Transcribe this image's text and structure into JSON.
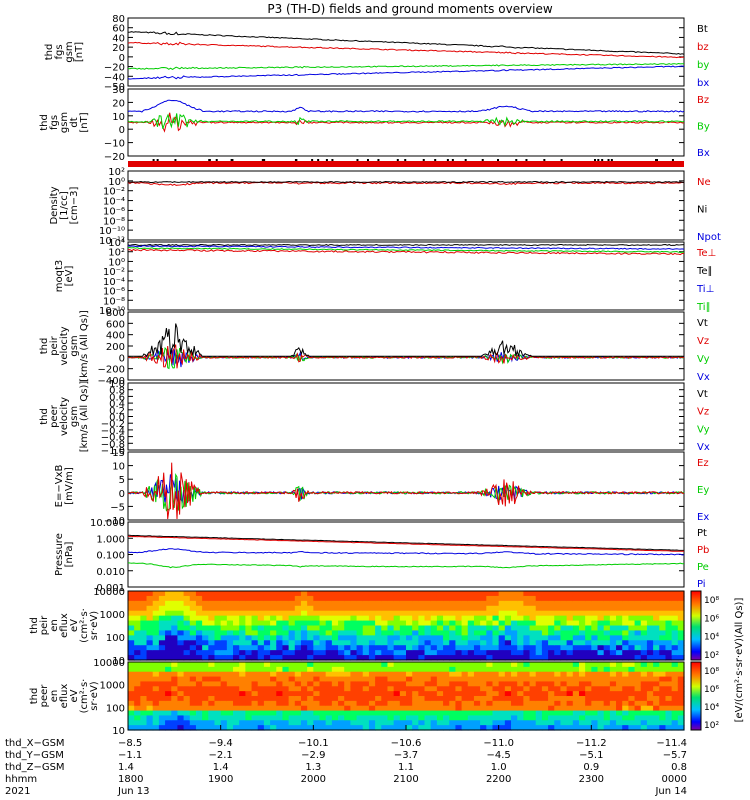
{
  "title": "P3 (TH-D) fields and ground moments overview",
  "colors": {
    "black": "#000000",
    "red": "#e00000",
    "green": "#00cc00",
    "blue": "#0000e0"
  },
  "chart_data": [
    {
      "type": "line",
      "panel": "fgs_gsm",
      "ylabel": [
        "thd",
        "fgs",
        "gsm",
        "[nT]"
      ],
      "ylim": [
        -50,
        88
      ],
      "yticks": [
        "80",
        "60",
        "40",
        "20",
        "0",
        "−20",
        "−40",
        "−50"
      ],
      "series": [
        {
          "name": "Bt",
          "color": "black",
          "start": 60,
          "end": 15
        },
        {
          "name": "bz",
          "color": "red",
          "start": 38,
          "end": 8
        },
        {
          "name": "by",
          "color": "green",
          "start": -15,
          "end": -5
        },
        {
          "name": "bx",
          "color": "blue",
          "start": -35,
          "end": -10
        }
      ]
    },
    {
      "type": "line",
      "panel": "fgs_gsm_detrended",
      "ylabel": [
        "thd",
        "fgs",
        "gsm",
        "dt",
        "[nT]"
      ],
      "ylim": [
        -28,
        32
      ],
      "yticks": [
        "30",
        "20",
        "10",
        "0",
        "−10",
        "−20"
      ],
      "series": [
        {
          "name": "Bz",
          "color": "red",
          "level": 2
        },
        {
          "name": "By",
          "color": "green",
          "level": 3
        },
        {
          "name": "Bx",
          "color": "blue",
          "level": 12
        }
      ]
    },
    {
      "type": "line",
      "panel": "density",
      "ylabel": [
        "Density",
        "[1/cc]",
        "[cm−3]"
      ],
      "yscale": "log",
      "yticks": [
        "10²",
        "10⁰",
        "10⁻²",
        "10⁻⁴",
        "10⁻⁶",
        "10⁻⁸",
        "10⁻¹⁰",
        "10⁻¹²"
      ],
      "series": [
        {
          "name": "Ne",
          "color": "red"
        },
        {
          "name": "Ni",
          "color": "black"
        },
        {
          "name": "Npot",
          "color": "blue"
        }
      ]
    },
    {
      "type": "line",
      "panel": "temperature",
      "ylabel": [
        "moqt3",
        "[eV]"
      ],
      "yscale": "log",
      "yticks": [
        "10⁴",
        "10²",
        "10⁰",
        "10⁻²",
        "10⁻⁴",
        "10⁻⁶",
        "10⁻⁸",
        "10⁻¹⁰"
      ],
      "series": [
        {
          "name": "Te⊥",
          "color": "red"
        },
        {
          "name": "Te∥",
          "color": "black"
        },
        {
          "name": "Ti⊥",
          "color": "blue"
        },
        {
          "name": "Ti∥",
          "color": "green"
        }
      ]
    },
    {
      "type": "line",
      "panel": "peir_velocity",
      "ylabel": [
        "thd",
        "peir",
        "velocity",
        "gsm",
        "[km/s (All Qs)]"
      ],
      "ylim": [
        -400,
        800
      ],
      "yticks": [
        "800",
        "600",
        "400",
        "200",
        "0",
        "−200",
        "−400"
      ],
      "series": [
        {
          "name": "Vt",
          "color": "black"
        },
        {
          "name": "Vz",
          "color": "red"
        },
        {
          "name": "Vy",
          "color": "green"
        },
        {
          "name": "Vx",
          "color": "blue"
        }
      ]
    },
    {
      "type": "line",
      "panel": "peer_velocity",
      "ylabel": [
        "thd",
        "peer",
        "velocity",
        "gsm",
        "[km/s (All Qs)]"
      ],
      "ylim": [
        -1,
        1
      ],
      "yticks": [
        "1.0",
        "0.8",
        "0.6",
        "0.4",
        "0.2",
        "0.0",
        "−0.2",
        "−0.4",
        "−0.6",
        "−0.8",
        "−1.0"
      ],
      "series": [
        {
          "name": "Vt",
          "color": "black"
        },
        {
          "name": "Vz",
          "color": "red"
        },
        {
          "name": "Vy",
          "color": "green"
        },
        {
          "name": "Vx",
          "color": "blue"
        }
      ]
    },
    {
      "type": "line",
      "panel": "efield",
      "ylabel": [
        "E=−VxB",
        "[mV/m]"
      ],
      "ylim": [
        -10,
        15
      ],
      "yticks": [
        "15",
        "10",
        "5",
        "0",
        "−5",
        "−10"
      ],
      "series": [
        {
          "name": "Ez",
          "color": "red"
        },
        {
          "name": "Ey",
          "color": "green"
        },
        {
          "name": "Ex",
          "color": "blue"
        }
      ]
    },
    {
      "type": "line",
      "panel": "pressure",
      "ylabel": [
        "Pressure",
        "[nPa]"
      ],
      "yscale": "log",
      "ylim": [
        0.001,
        10
      ],
      "yticks": [
        "10.000",
        "1.000",
        "0.100",
        "0.010",
        "0.001"
      ],
      "series": [
        {
          "name": "Pt",
          "color": "black"
        },
        {
          "name": "Pb",
          "color": "red"
        },
        {
          "name": "Pe",
          "color": "green"
        },
        {
          "name": "Pi",
          "color": "blue"
        }
      ]
    },
    {
      "type": "heatmap",
      "panel": "peir_spectrogram",
      "ylabel": [
        "thd",
        "peir",
        "en",
        "eflux",
        "eV",
        "(cm²·s·",
        "sr·eV)"
      ],
      "yscale": "log",
      "yticks": [
        "10000",
        "1000",
        "100",
        "10"
      ]
    },
    {
      "type": "heatmap",
      "panel": "peer_spectrogram",
      "ylabel": [
        "thd",
        "peer",
        "en",
        "eflux",
        "eV",
        "(cm²·s·",
        "sr·eV)"
      ],
      "yscale": "log",
      "yticks": [
        "10000",
        "1000",
        "100",
        "10"
      ]
    }
  ],
  "colorbar": {
    "label": "[eV/(cm²·s·sr·eV)(All Qs)]",
    "upper_ticks": [
      "10⁸",
      "10⁶",
      "10⁴",
      "10²"
    ],
    "lower_ticks": [
      "10⁸",
      "10⁶",
      "10⁴",
      "10²"
    ]
  },
  "x_axis": {
    "row_labels": [
      "thd_X−GSM",
      "thd_Y−GSM",
      "thd_Z−GSM",
      "hhmm",
      "2021"
    ],
    "columns": [
      {
        "x_gsm": "−8.5",
        "y_gsm": "−1.1",
        "z_gsm": "1.4",
        "hhmm": "1800",
        "date": "Jun 13"
      },
      {
        "x_gsm": "−9.4",
        "y_gsm": "−2.1",
        "z_gsm": "1.4",
        "hhmm": "1900",
        "date": ""
      },
      {
        "x_gsm": "−10.1",
        "y_gsm": "−2.9",
        "z_gsm": "1.3",
        "hhmm": "2000",
        "date": ""
      },
      {
        "x_gsm": "−10.6",
        "y_gsm": "−3.7",
        "z_gsm": "1.1",
        "hhmm": "2100",
        "date": ""
      },
      {
        "x_gsm": "−11.0",
        "y_gsm": "−4.5",
        "z_gsm": "1.0",
        "hhmm": "2200",
        "date": ""
      },
      {
        "x_gsm": "−11.2",
        "y_gsm": "−5.1",
        "z_gsm": "0.9",
        "hhmm": "2300",
        "date": ""
      },
      {
        "x_gsm": "−11.4",
        "y_gsm": "−5.7",
        "z_gsm": "0.8",
        "hhmm": "0000",
        "date": "Jun 14"
      }
    ]
  }
}
